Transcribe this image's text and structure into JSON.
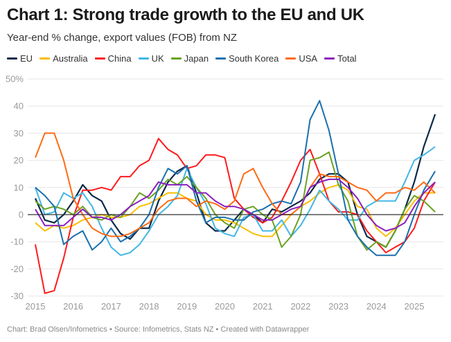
{
  "header": {
    "title": "Chart 1: Strong trade growth to the EU and UK",
    "subtitle": "Year-end % change, export values (FOB) from NZ"
  },
  "footer": {
    "text": "Chart: Brad Olsen/Infometrics • Source: Infometrics, Stats NZ • Created with Datawrapper"
  },
  "chart_data": {
    "type": "line",
    "title": "Chart 1: Strong trade growth to the EU and UK",
    "subtitle": "Year-end % change, export values (FOB) from NZ",
    "xlabel": "",
    "ylabel": "Year-end % change",
    "ylim": [
      -30,
      50
    ],
    "xlim": [
      2015,
      2025.9
    ],
    "grid": true,
    "legend_position": "top-left",
    "y_ticks": [
      {
        "value": 50,
        "label": "50%"
      },
      {
        "value": 40,
        "label": "40"
      },
      {
        "value": 30,
        "label": "30"
      },
      {
        "value": 20,
        "label": "20"
      },
      {
        "value": 10,
        "label": "10"
      },
      {
        "value": 0,
        "label": "0"
      },
      {
        "value": -10,
        "label": "-10"
      },
      {
        "value": -20,
        "label": "-20"
      },
      {
        "value": -30,
        "label": "-30"
      }
    ],
    "x_ticks": [
      "2015",
      "2016",
      "2017",
      "2018",
      "2019",
      "2020",
      "2021",
      "2022",
      "2023",
      "2024",
      "2025"
    ],
    "x": [
      2015.0,
      2015.25,
      2015.5,
      2015.75,
      2016.0,
      2016.25,
      2016.5,
      2016.75,
      2017.0,
      2017.25,
      2017.5,
      2017.75,
      2018.0,
      2018.25,
      2018.5,
      2018.75,
      2019.0,
      2019.25,
      2019.5,
      2019.75,
      2020.0,
      2020.25,
      2020.5,
      2020.75,
      2021.0,
      2021.25,
      2021.5,
      2021.75,
      2022.0,
      2022.25,
      2022.5,
      2022.75,
      2023.0,
      2023.25,
      2023.5,
      2023.75,
      2024.0,
      2024.25,
      2024.5,
      2024.75,
      2025.0,
      2025.25,
      2025.55
    ],
    "series": [
      {
        "name": "EU",
        "color": "#0b2a48",
        "values": [
          6,
          -2,
          -3,
          0,
          5,
          11,
          7,
          5,
          -2,
          -7,
          -9,
          -5,
          -5,
          5,
          12,
          16,
          18,
          8,
          -3,
          -6,
          -6,
          -2,
          2,
          0,
          -3,
          2,
          1,
          3,
          5,
          8,
          13,
          15,
          15,
          12,
          0,
          -8,
          -10,
          -12,
          -6,
          2,
          12,
          25,
          37
        ]
      },
      {
        "name": "Australia",
        "color": "#fbbd00",
        "values": [
          -3,
          -6,
          -4,
          -5,
          -4,
          -2,
          -1,
          0,
          -1,
          -1,
          0,
          3,
          4,
          6,
          8,
          8,
          6,
          5,
          0,
          -2,
          -2,
          -3,
          -5,
          -7,
          -8,
          -8,
          -4,
          0,
          3,
          5,
          8,
          10,
          11,
          9,
          3,
          2,
          -5,
          -8,
          -5,
          0,
          5,
          8,
          8
        ]
      },
      {
        "name": "China",
        "color": "#ff1a1a",
        "values": [
          -11,
          -29,
          -28,
          -16,
          -1,
          9,
          9,
          10,
          9,
          14,
          14,
          18,
          20,
          28,
          24,
          22,
          17,
          18,
          22,
          22,
          21,
          6,
          2,
          -1,
          -3,
          -1,
          5,
          12,
          20,
          24,
          15,
          5,
          1,
          1,
          0,
          -6,
          -10,
          -14,
          -12,
          -10,
          -5,
          5,
          12
        ]
      },
      {
        "name": "UK",
        "color": "#41b6e6",
        "values": [
          10,
          0,
          1,
          8,
          6,
          8,
          3,
          -5,
          -12,
          -15,
          -14,
          -11,
          -6,
          0,
          3,
          7,
          17,
          10,
          4,
          -5,
          -7,
          -8,
          -1,
          0,
          -6,
          -6,
          -2,
          -8,
          -4,
          2,
          9,
          5,
          2,
          -2,
          -2,
          3,
          5,
          5,
          5,
          12,
          20,
          22,
          25
        ]
      },
      {
        "name": "Japan",
        "color": "#6aa121",
        "values": [
          5,
          2,
          3,
          2,
          0,
          3,
          -1,
          -2,
          0,
          -1,
          3,
          8,
          6,
          9,
          13,
          11,
          14,
          10,
          6,
          0,
          -3,
          -5,
          2,
          3,
          0,
          -2,
          -12,
          -8,
          0,
          20,
          21,
          23,
          11,
          5,
          -8,
          -13,
          -10,
          -12,
          -6,
          2,
          7,
          5,
          1
        ]
      },
      {
        "name": "South Korea",
        "color": "#1a6fae",
        "values": [
          10,
          7,
          3,
          -11,
          -8,
          -6,
          -13,
          -10,
          -5,
          -10,
          -8,
          -5,
          0,
          10,
          17,
          15,
          18,
          5,
          -3,
          -1,
          -1,
          -2,
          -2,
          1,
          2,
          4,
          5,
          4,
          12,
          35,
          42,
          31,
          15,
          -2,
          -8,
          -12,
          -15,
          -15,
          -15,
          -10,
          0,
          9,
          16
        ]
      },
      {
        "name": "USA",
        "color": "#ff6a12",
        "values": [
          21,
          30,
          30,
          20,
          6,
          0,
          -5,
          -7,
          -8,
          -8,
          -7,
          -5,
          -3,
          2,
          5,
          6,
          6,
          3,
          5,
          4,
          2,
          5,
          15,
          17,
          10,
          4,
          0,
          0,
          3,
          10,
          15,
          14,
          14,
          12,
          10,
          9,
          5,
          8,
          8,
          10,
          9,
          12,
          8
        ]
      },
      {
        "name": "Total",
        "color": "#8b1fc0",
        "values": [
          2,
          -4,
          -4,
          -4,
          -1,
          2,
          -1,
          -1,
          -2,
          0,
          3,
          5,
          7,
          12,
          11,
          11,
          11,
          8,
          8,
          5,
          3,
          3,
          2,
          0,
          -2,
          -2,
          0,
          2,
          3,
          10,
          12,
          13,
          13,
          10,
          6,
          0,
          -4,
          -6,
          -5,
          -3,
          3,
          8,
          12
        ]
      }
    ]
  }
}
